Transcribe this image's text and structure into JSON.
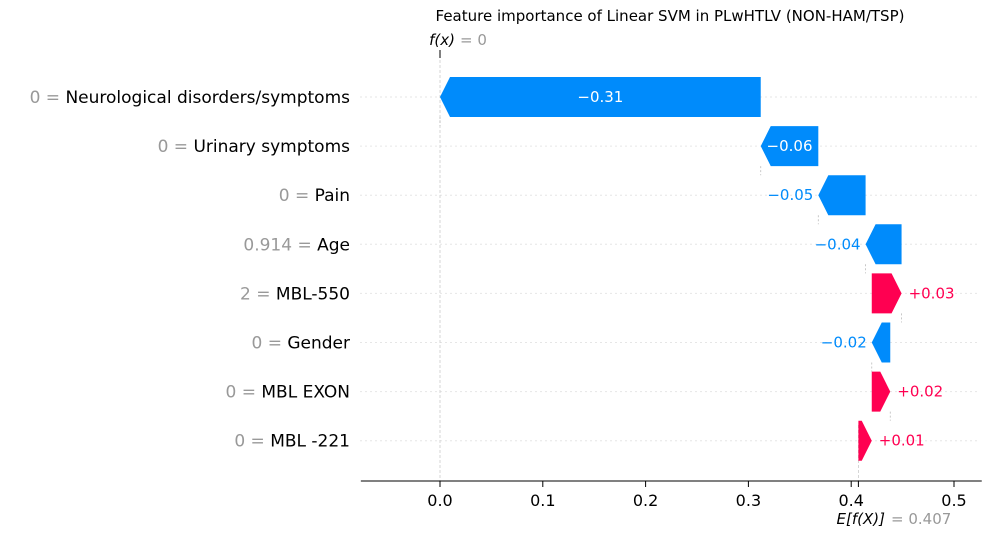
{
  "chart_data": {
    "type": "waterfall",
    "title": "Feature importance of Linear SVM in PLwHTLV (NON-HAM/TSP)",
    "fx_label": "f(x)",
    "fx_value": "0",
    "base_label": "E[f(X)]",
    "base_value_text": "0.407",
    "base_value": 0.407,
    "xlim": [
      -0.077,
      0.527
    ],
    "xticks": [
      0.0,
      0.1,
      0.2,
      0.3,
      0.4,
      0.5
    ],
    "xtick_labels": [
      "0.0",
      "0.1",
      "0.2",
      "0.3",
      "0.4",
      "0.5"
    ],
    "features": [
      {
        "value": "0",
        "name": "Neurological disorders/symptoms",
        "contribution": -0.31,
        "label": "−0.31",
        "start": 0.312,
        "end": 0.0
      },
      {
        "value": "0",
        "name": "Urinary symptoms",
        "contribution": -0.06,
        "label": "−0.06",
        "start": 0.368,
        "end": 0.312
      },
      {
        "value": "0",
        "name": "Pain",
        "contribution": -0.05,
        "label": "−0.05",
        "start": 0.414,
        "end": 0.368
      },
      {
        "value": "0.914",
        "name": "Age",
        "contribution": -0.04,
        "label": "−0.04",
        "start": 0.449,
        "end": 0.414
      },
      {
        "value": "2",
        "name": "MBL-550",
        "contribution": 0.03,
        "label": "+0.03",
        "start": 0.42,
        "end": 0.449
      },
      {
        "value": "0",
        "name": "Gender",
        "contribution": -0.02,
        "label": "−0.02",
        "start": 0.438,
        "end": 0.42
      },
      {
        "value": "0",
        "name": "MBL EXON",
        "contribution": 0.02,
        "label": "+0.02",
        "start": 0.42,
        "end": 0.438
      },
      {
        "value": "0",
        "name": "MBL -221",
        "contribution": 0.01,
        "label": "+0.01",
        "start": 0.407,
        "end": 0.42
      }
    ],
    "colors": {
      "positive": "#ff0051",
      "negative": "#008bfb",
      "muted": "#999999",
      "axis": "#000000"
    }
  }
}
